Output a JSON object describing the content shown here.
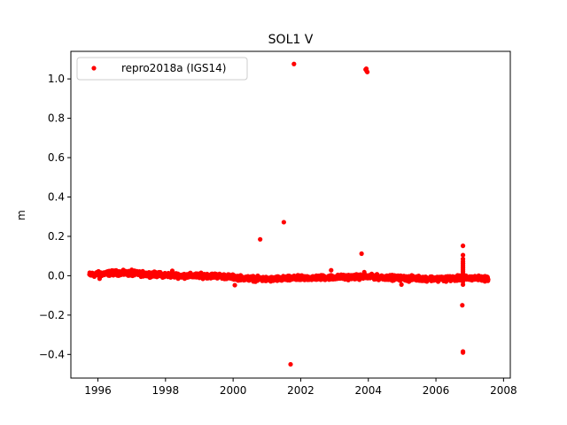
{
  "chart_data": {
    "type": "scatter",
    "title": "SOL1 V",
    "xlabel": "",
    "ylabel": "m",
    "xlim": [
      1995.2,
      2008.2
    ],
    "ylim": [
      -0.52,
      1.14
    ],
    "xticks": [
      1996,
      1998,
      2000,
      2002,
      2004,
      2006,
      2008
    ],
    "yticks": [
      -0.4,
      -0.2,
      0.0,
      0.2,
      0.4,
      0.6,
      0.8,
      1.0
    ],
    "ytick_labels": [
      "−0.4",
      "−0.2",
      "0.0",
      "0.2",
      "0.4",
      "0.6",
      "0.8",
      "1.0"
    ],
    "legend": {
      "position": "top-left",
      "entries": [
        "repro2018a (IGS14)"
      ]
    },
    "grid": false,
    "series": [
      {
        "name": "repro2018a (IGS14)",
        "color": "#ff0000",
        "marker": "circle",
        "x_start": 1995.75,
        "x_end": 2007.55,
        "baseline": [
          [
            1995.75,
            0.005
          ],
          [
            1996.5,
            0.015
          ],
          [
            1997.5,
            0.008
          ],
          [
            1998.5,
            0.0
          ],
          [
            1999.5,
            0.0
          ],
          [
            2000.3,
            -0.012
          ],
          [
            2001.0,
            -0.018
          ],
          [
            2002.0,
            -0.012
          ],
          [
            2003.0,
            -0.008
          ],
          [
            2004.0,
            -0.005
          ],
          [
            2005.0,
            -0.012
          ],
          [
            2006.0,
            -0.015
          ],
          [
            2007.0,
            -0.012
          ],
          [
            2007.55,
            -0.014
          ]
        ],
        "outliers": [
          [
            1996.0,
            0.02
          ],
          [
            1996.05,
            -0.015
          ],
          [
            1997.0,
            0.03
          ],
          [
            1998.2,
            0.025
          ],
          [
            2000.05,
            -0.048
          ],
          [
            2000.8,
            0.185
          ],
          [
            2001.5,
            0.272
          ],
          [
            2001.7,
            -0.45
          ],
          [
            2001.8,
            1.076
          ],
          [
            2002.9,
            0.028
          ],
          [
            2003.8,
            0.112
          ],
          [
            2003.88,
            0.018
          ],
          [
            2003.92,
            1.048
          ],
          [
            2003.94,
            1.052
          ],
          [
            2003.95,
            1.04
          ],
          [
            2003.97,
            1.035
          ],
          [
            2004.98,
            -0.045
          ],
          [
            2005.2,
            -0.03
          ],
          [
            2006.3,
            -0.03
          ],
          [
            2006.78,
            -0.15
          ],
          [
            2006.8,
            -0.385
          ],
          [
            2006.8,
            -0.39
          ],
          [
            2006.8,
            0.152
          ],
          [
            2006.8,
            0.105
          ],
          [
            2006.8,
            0.085
          ],
          [
            2006.8,
            0.072
          ],
          [
            2006.8,
            0.062
          ],
          [
            2006.8,
            0.052
          ],
          [
            2006.8,
            0.042
          ],
          [
            2006.8,
            0.032
          ],
          [
            2006.8,
            0.022
          ],
          [
            2006.8,
            0.012
          ],
          [
            2006.8,
            -0.03
          ],
          [
            2006.8,
            -0.045
          ]
        ]
      }
    ]
  }
}
